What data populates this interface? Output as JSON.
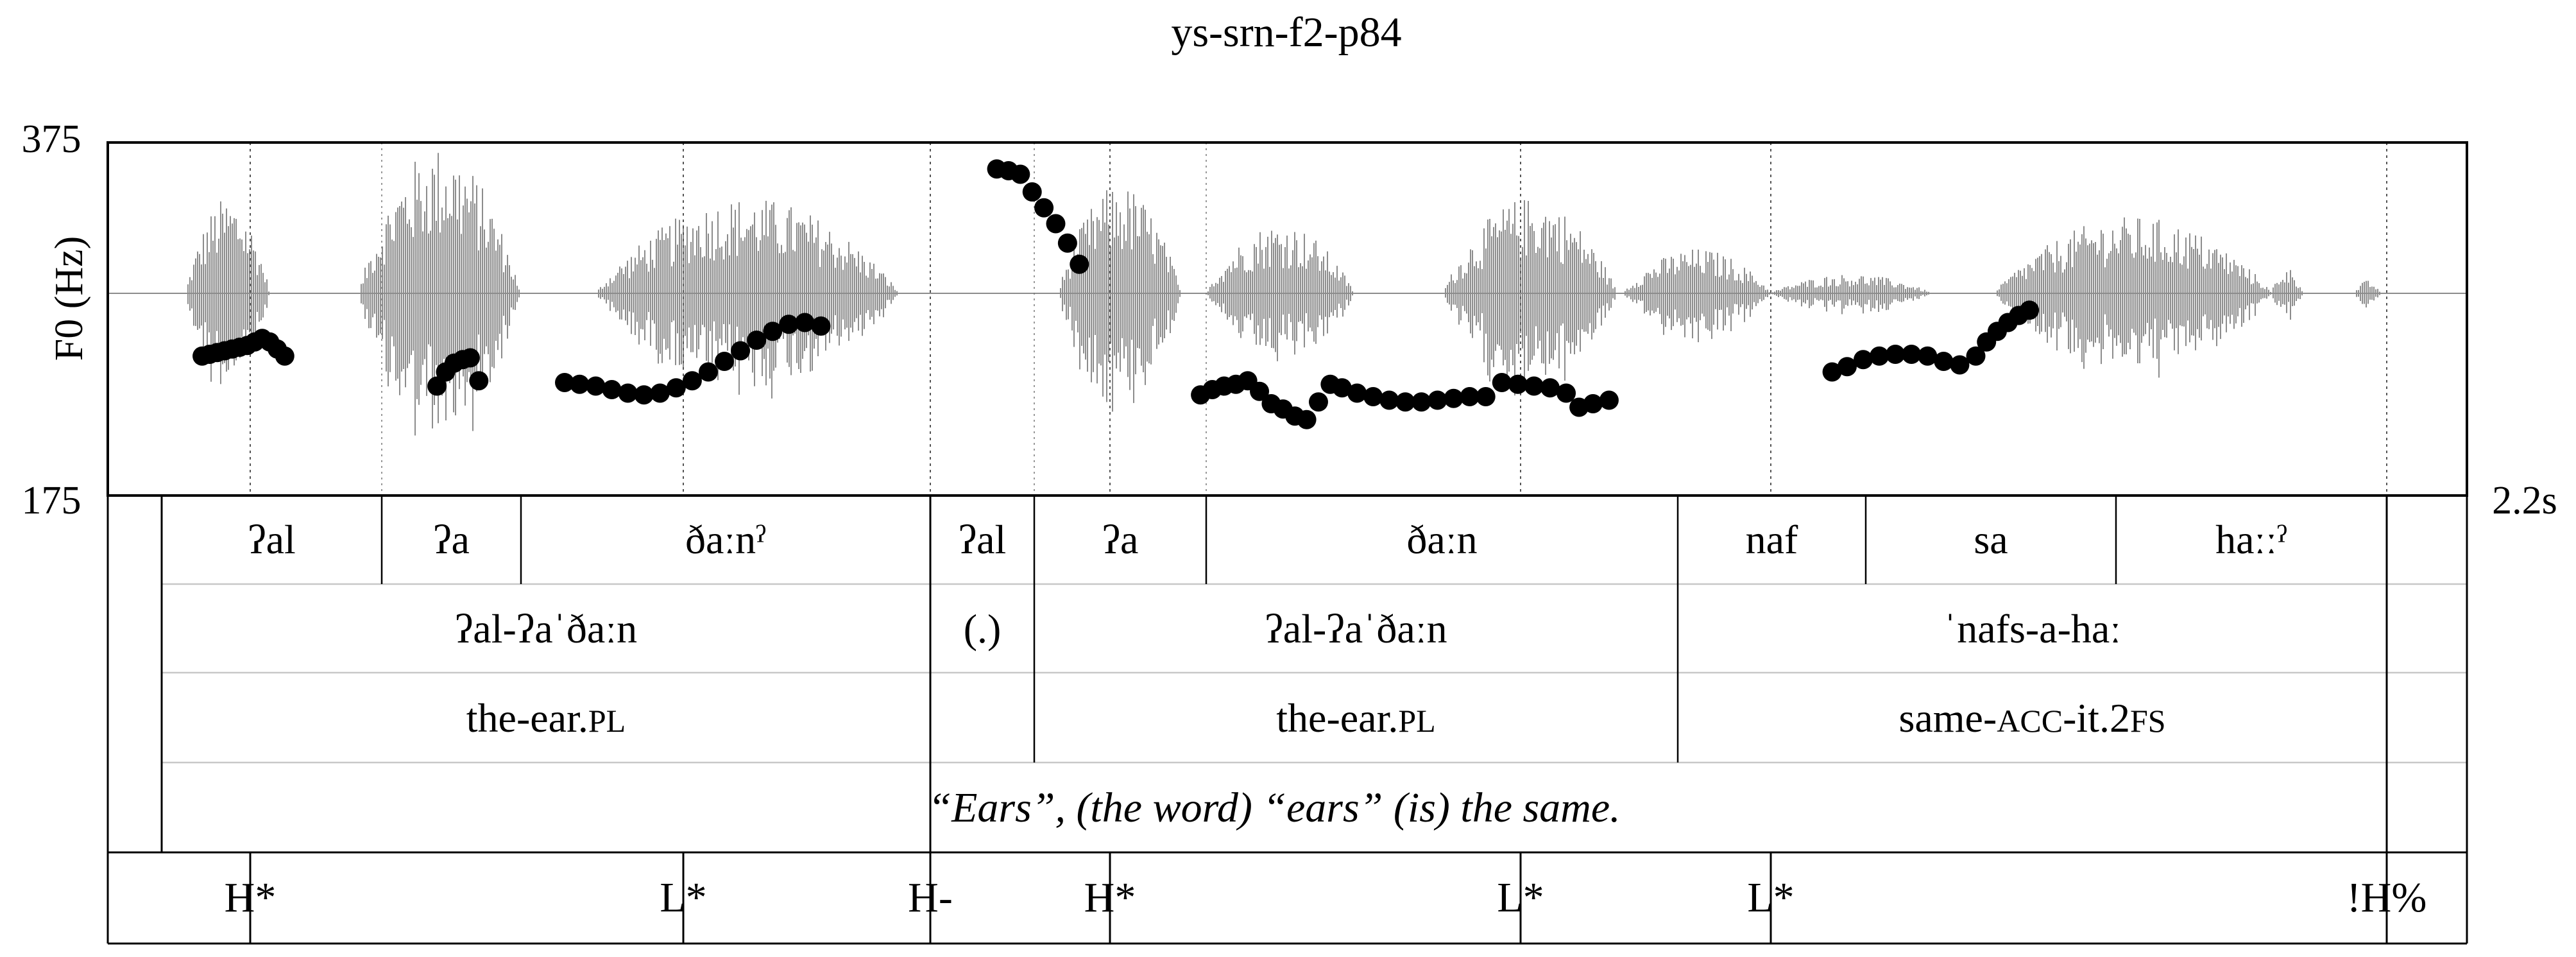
{
  "title": "ys-srn-f2-p84",
  "chart_data": {
    "type": "line",
    "title": "ys-srn-f2-p84",
    "ylabel": "F0 (Hz)",
    "ylim": [
      175,
      375
    ],
    "y_tick_labels": {
      "top": "375",
      "bottom": "175"
    },
    "time_end_label": "2.2s",
    "time_range": [
      0,
      2.2
    ],
    "series": [
      {
        "values_note": "",
        "points": [
          [
            0.088,
            254
          ],
          [
            0.095,
            255
          ],
          [
            0.102,
            256
          ],
          [
            0.109,
            257
          ],
          [
            0.116,
            258
          ],
          [
            0.123,
            259
          ],
          [
            0.13,
            260
          ],
          [
            0.137,
            262
          ],
          [
            0.144,
            264
          ],
          [
            0.151,
            262
          ],
          [
            0.158,
            258
          ],
          [
            0.165,
            254
          ],
          [
            0.307,
            237
          ],
          [
            0.315,
            245
          ],
          [
            0.323,
            250
          ],
          [
            0.331,
            252
          ],
          [
            0.338,
            253
          ],
          [
            0.346,
            240
          ],
          [
            0.426,
            239
          ],
          [
            0.44,
            238
          ],
          [
            0.455,
            237
          ],
          [
            0.47,
            235
          ],
          [
            0.485,
            233
          ],
          [
            0.5,
            232
          ],
          [
            0.515,
            233
          ],
          [
            0.53,
            236
          ],
          [
            0.545,
            240
          ],
          [
            0.56,
            245
          ],
          [
            0.575,
            251
          ],
          [
            0.59,
            257
          ],
          [
            0.605,
            263
          ],
          [
            0.62,
            268
          ],
          [
            0.635,
            272
          ],
          [
            0.65,
            273
          ],
          [
            0.665,
            271
          ],
          [
            0.829,
            360
          ],
          [
            0.84,
            359
          ],
          [
            0.851,
            357
          ],
          [
            0.862,
            347
          ],
          [
            0.873,
            338
          ],
          [
            0.884,
            329
          ],
          [
            0.895,
            318
          ],
          [
            0.906,
            306
          ],
          [
            1.019,
            232
          ],
          [
            1.03,
            235
          ],
          [
            1.041,
            237
          ],
          [
            1.052,
            238
          ],
          [
            1.063,
            240
          ],
          [
            1.074,
            234
          ],
          [
            1.085,
            227
          ],
          [
            1.096,
            224
          ],
          [
            1.107,
            220
          ],
          [
            1.118,
            218
          ],
          [
            1.129,
            228
          ],
          [
            1.14,
            238
          ],
          [
            1.151,
            236
          ],
          [
            1.165,
            233
          ],
          [
            1.18,
            231
          ],
          [
            1.195,
            229
          ],
          [
            1.21,
            228
          ],
          [
            1.225,
            228
          ],
          [
            1.24,
            229
          ],
          [
            1.255,
            230
          ],
          [
            1.27,
            231
          ],
          [
            1.285,
            231
          ],
          [
            1.3,
            239
          ],
          [
            1.315,
            238
          ],
          [
            1.33,
            237
          ],
          [
            1.345,
            236
          ],
          [
            1.36,
            233
          ],
          [
            1.372,
            225
          ],
          [
            1.385,
            227
          ],
          [
            1.4,
            229
          ],
          [
            1.608,
            245
          ],
          [
            1.622,
            248
          ],
          [
            1.637,
            252
          ],
          [
            1.652,
            254
          ],
          [
            1.667,
            255
          ],
          [
            1.682,
            255
          ],
          [
            1.697,
            254
          ],
          [
            1.712,
            251
          ],
          [
            1.727,
            249
          ],
          [
            1.742,
            254
          ],
          [
            1.752,
            262
          ],
          [
            1.762,
            268
          ],
          [
            1.772,
            273
          ],
          [
            1.782,
            277
          ],
          [
            1.792,
            280
          ]
        ]
      }
    ]
  },
  "tiers": {
    "syllables": [
      "ʔal",
      "ʔa",
      "ðaːnˀ",
      "ʔal",
      "ʔa",
      "ðaːn",
      "naf",
      "sa",
      "haːːˀ"
    ],
    "words": [
      "ʔal-ʔaˈðaːn",
      "(.)",
      "ʔal-ʔaˈðaːn",
      "ˈnafs-a-haː"
    ],
    "glosses": [
      {
        "parts": [
          {
            "text": "the-ear.",
            "sc": false
          },
          {
            "text": "PL",
            "sc": true
          }
        ]
      },
      {
        "parts": [
          {
            "text": "the-ear.",
            "sc": false
          },
          {
            "text": "PL",
            "sc": true
          }
        ]
      },
      {
        "parts": [
          {
            "text": "same-",
            "sc": false
          },
          {
            "text": "ACC",
            "sc": true
          },
          {
            "text": "-it.2",
            "sc": false
          },
          {
            "text": "FS",
            "sc": true
          }
        ]
      }
    ],
    "translation": "“Ears”, (the word) “ears” (is) the same.",
    "tones": [
      "H*",
      "L*",
      "H-",
      "H*",
      "L*",
      "L*",
      "!H%"
    ]
  },
  "colors": {
    "waveform": "#8c8c8c",
    "pitch_points": "#000000",
    "lines": "#000000",
    "light_lines": "#c8c8c8"
  }
}
